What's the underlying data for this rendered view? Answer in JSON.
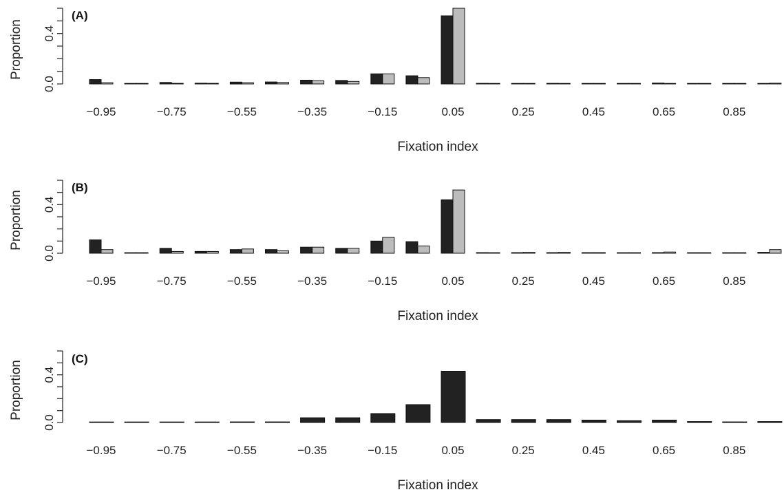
{
  "figure": {
    "background": "#ffffff",
    "series_colors": [
      "#222222",
      "#bcbcbc"
    ]
  },
  "chart_data": [
    {
      "type": "bar",
      "panel_label": "(A)",
      "xlabel": "Fixation index",
      "ylabel": "Proportion",
      "ylim": [
        0,
        0.6
      ],
      "yticks": [
        "0.0",
        "0.4"
      ],
      "x_tick_labels": [
        "−0.95",
        "−0.75",
        "−0.55",
        "−0.35",
        "−0.15",
        "0.05",
        "0.25",
        "0.45",
        "0.65",
        "0.85"
      ],
      "categories": [
        "−0.95",
        "−0.85",
        "−0.75",
        "−0.65",
        "−0.55",
        "−0.45",
        "−0.35",
        "−0.25",
        "−0.15",
        "−0.05",
        "0.05",
        "0.15",
        "0.25",
        "0.35",
        "0.45",
        "0.55",
        "0.65",
        "0.75",
        "0.85",
        "0.95"
      ],
      "series": [
        {
          "color": "#222222",
          "values": [
            0.035,
            0.002,
            0.012,
            0.006,
            0.015,
            0.016,
            0.03,
            0.028,
            0.08,
            0.065,
            0.54,
            0.005,
            0.004,
            0.005,
            0.002,
            0.002,
            0.007,
            0.002,
            0.002,
            0.004
          ]
        },
        {
          "color": "#bcbcbc",
          "values": [
            0.01,
            0.002,
            0.005,
            0.005,
            0.01,
            0.012,
            0.025,
            0.02,
            0.08,
            0.05,
            0.6,
            0.003,
            0.003,
            0.003,
            0.002,
            0.002,
            0.004,
            0.002,
            0.002,
            0.006
          ]
        }
      ]
    },
    {
      "type": "bar",
      "panel_label": "(B)",
      "xlabel": "Fixation index",
      "ylabel": "Proportion",
      "ylim": [
        0,
        0.6
      ],
      "yticks": [
        "0.0",
        "0.4"
      ],
      "x_tick_labels": [
        "−0.95",
        "−0.75",
        "−0.55",
        "−0.35",
        "−0.15",
        "0.05",
        "0.25",
        "0.45",
        "0.65",
        "0.85"
      ],
      "categories": [
        "−0.95",
        "−0.85",
        "−0.75",
        "−0.65",
        "−0.55",
        "−0.45",
        "−0.35",
        "−0.25",
        "−0.15",
        "−0.05",
        "0.05",
        "0.15",
        "0.25",
        "0.35",
        "0.45",
        "0.55",
        "0.65",
        "0.75",
        "0.85",
        "0.95"
      ],
      "series": [
        {
          "color": "#222222",
          "values": [
            0.11,
            0.002,
            0.04,
            0.015,
            0.03,
            0.03,
            0.05,
            0.04,
            0.1,
            0.095,
            0.44,
            0.005,
            0.005,
            0.005,
            0.005,
            0.003,
            0.005,
            0.002,
            0.003,
            0.008
          ]
        },
        {
          "color": "#bcbcbc",
          "values": [
            0.03,
            0.002,
            0.015,
            0.015,
            0.035,
            0.02,
            0.05,
            0.04,
            0.13,
            0.06,
            0.52,
            0.003,
            0.008,
            0.008,
            0.005,
            0.003,
            0.01,
            0.002,
            0.002,
            0.03
          ]
        }
      ]
    },
    {
      "type": "bar",
      "panel_label": "(C)",
      "xlabel": "Fixation index",
      "ylabel": "Proportion",
      "ylim": [
        0,
        0.6
      ],
      "yticks": [
        "0.0",
        "0.4"
      ],
      "x_tick_labels": [
        "−0.95",
        "−0.75",
        "−0.55",
        "−0.35",
        "−0.15",
        "0.05",
        "0.25",
        "0.45",
        "0.65",
        "0.85"
      ],
      "categories": [
        "−0.95",
        "−0.85",
        "−0.75",
        "−0.65",
        "−0.55",
        "−0.45",
        "−0.35",
        "−0.25",
        "−0.15",
        "−0.05",
        "0.05",
        "0.15",
        "0.25",
        "0.35",
        "0.45",
        "0.55",
        "0.65",
        "0.75",
        "0.85",
        "0.95"
      ],
      "series": [
        {
          "color": "#222222",
          "values": [
            0.002,
            0.002,
            0.002,
            0.002,
            0.005,
            0.005,
            0.04,
            0.04,
            0.075,
            0.15,
            0.43,
            0.025,
            0.025,
            0.025,
            0.02,
            0.015,
            0.02,
            0.008,
            0.005,
            0.008
          ]
        }
      ]
    }
  ]
}
